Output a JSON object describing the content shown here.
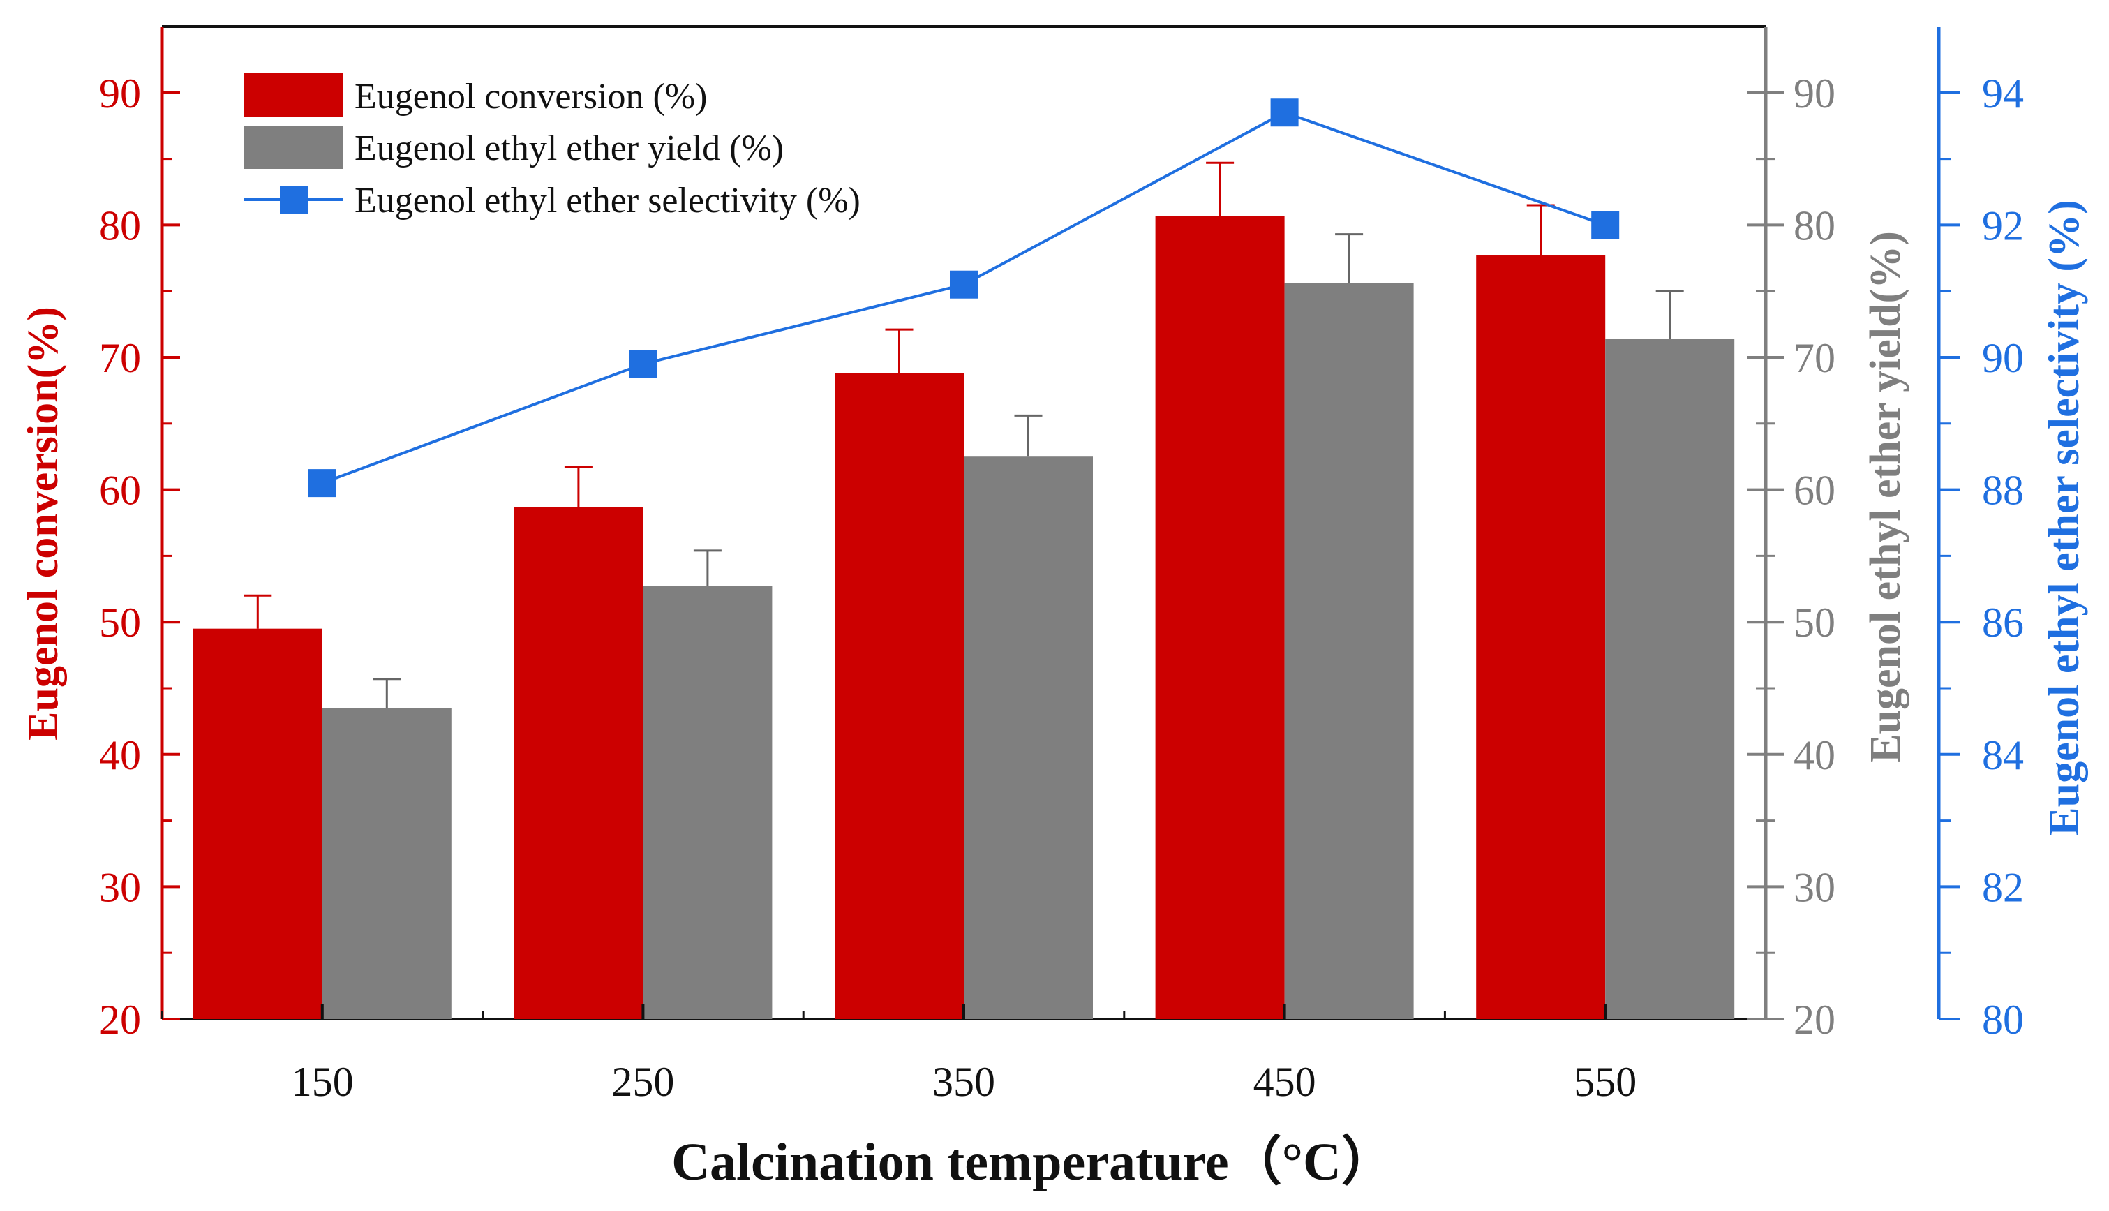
{
  "chart_data": {
    "type": "bar",
    "categories": [
      "150",
      "250",
      "350",
      "450",
      "550"
    ],
    "series": [
      {
        "name": "Eugenol conversion (%)",
        "kind": "bar",
        "axis": "left",
        "color": "#cc0000",
        "values": [
          49.5,
          58.7,
          68.8,
          80.7,
          77.7
        ],
        "errors": [
          2.5,
          3.0,
          3.3,
          4.0,
          3.8
        ]
      },
      {
        "name": "Eugenol ethyl ether yield (%)",
        "kind": "bar",
        "axis": "right_inner",
        "color": "#7f7f7f",
        "values": [
          43.5,
          52.7,
          62.5,
          75.6,
          71.4
        ],
        "errors": [
          2.2,
          2.7,
          3.1,
          3.7,
          3.6
        ]
      },
      {
        "name": "Eugenol ethyl ether selectivity (%)",
        "kind": "line",
        "axis": "right_outer",
        "color": "#1f6fe0",
        "values": [
          88.1,
          89.9,
          91.1,
          93.7,
          92.0
        ]
      }
    ],
    "xlabel": "Calcination temperature（°C）",
    "left_axis": {
      "label": "Eugenol conversion(%)",
      "min": 20,
      "max": 95,
      "ticks": [
        "20",
        "30",
        "40",
        "50",
        "60",
        "70",
        "80",
        "90"
      ],
      "color": "#cc0000"
    },
    "right_inner_axis": {
      "label": "Eugenol ethyl ether yield(%)",
      "min": 20,
      "max": 95,
      "ticks": [
        "20",
        "30",
        "40",
        "50",
        "60",
        "70",
        "80",
        "90"
      ],
      "color": "#7f7f7f"
    },
    "right_outer_axis": {
      "label": "Eugenol ethyl ether selectivity (%)",
      "min": 80,
      "max": 95,
      "ticks": [
        "80",
        "82",
        "84",
        "86",
        "88",
        "90",
        "92",
        "94"
      ],
      "color": "#1f6fe0"
    },
    "legend_position": "top-left"
  }
}
